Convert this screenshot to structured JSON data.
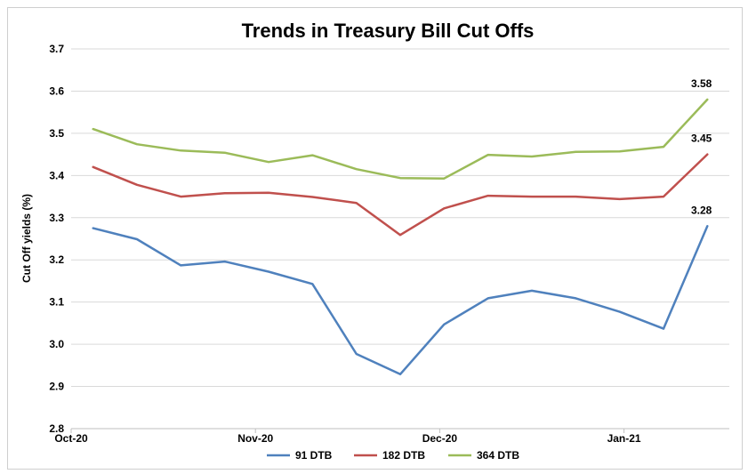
{
  "chart_data": {
    "type": "line",
    "title": "Trends in Treasury Bill Cut Offs",
    "xlabel": "",
    "ylabel": "Cut Off yields (%)",
    "ylim": [
      2.8,
      3.7
    ],
    "yticks": [
      "2.8",
      "2.9",
      "3.0",
      "3.1",
      "3.2",
      "3.3",
      "3.4",
      "3.5",
      "3.6",
      "3.7"
    ],
    "x_tick_labels": [
      "Oct-20",
      "Nov-20",
      "Dec-20",
      "Jan-21"
    ],
    "grid": "horizontal",
    "legend_position": "bottom",
    "series": [
      {
        "name": "91 DTB",
        "color": "#4f81bd",
        "values": [
          3.275,
          3.249,
          3.187,
          3.196,
          3.172,
          3.143,
          2.977,
          2.929,
          3.047,
          3.109,
          3.127,
          3.109,
          3.077,
          3.037,
          3.28
        ],
        "end_label": "3.28"
      },
      {
        "name": "182 DTB",
        "color": "#c0504d",
        "values": [
          3.42,
          3.378,
          3.35,
          3.358,
          3.359,
          3.349,
          3.335,
          3.259,
          3.322,
          3.352,
          3.35,
          3.35,
          3.344,
          3.35,
          3.45
        ],
        "end_label": "3.45"
      },
      {
        "name": "364 DTB",
        "color": "#9bbb59",
        "values": [
          3.51,
          3.474,
          3.459,
          3.454,
          3.432,
          3.448,
          3.415,
          3.394,
          3.393,
          3.449,
          3.445,
          3.456,
          3.457,
          3.468,
          3.58
        ],
        "end_label": "3.58"
      }
    ]
  }
}
